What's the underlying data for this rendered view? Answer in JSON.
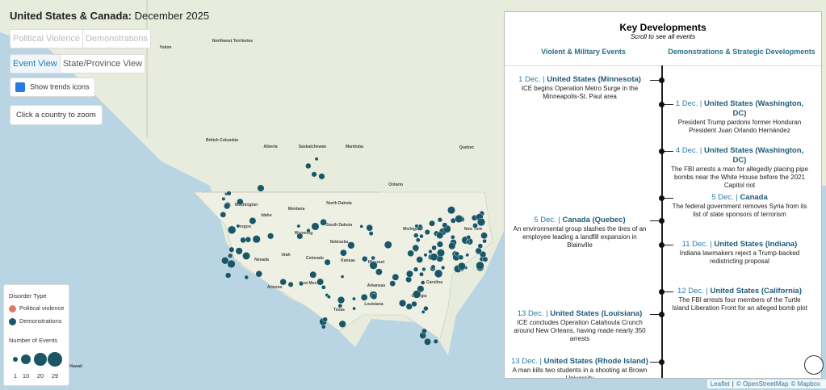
{
  "header": {
    "title_bold": "United States & Canada:",
    "title_rest": "December 2025"
  },
  "controls": {
    "type_tabs": [
      "Political Violence",
      "Demonstrations"
    ],
    "view_tabs": [
      "Event View",
      "State/Province View"
    ],
    "checkbox": "Show trends icons",
    "zoom_button": "Click a country to zoom"
  },
  "legend": {
    "title": "Disorder Type",
    "items": [
      {
        "label": "Political violence",
        "color": "#e07a67"
      },
      {
        "label": "Demonstrations",
        "color": "#1b5667"
      }
    ],
    "size_title": "Number of Events",
    "sizes": [
      1,
      10,
      20,
      29
    ]
  },
  "map_labels": [
    "Yukon",
    "Northwest Territories",
    "British Columbia",
    "Alberta",
    "Saskatchewan",
    "Manitoba",
    "Ontario",
    "Quebec",
    "Washington",
    "Oregon",
    "Idaho",
    "Montana",
    "North Dakota",
    "South Dakota",
    "Wyoming",
    "Nebraska",
    "Nevada",
    "Utah",
    "Colorado",
    "Kansas",
    "Missouri",
    "Arizona",
    "New Mexico",
    "Texas",
    "Arkansas",
    "Louisiana",
    "Georgia",
    "Carolina",
    "Michigan",
    "New York",
    "Hawaii"
  ],
  "panel": {
    "title": "Key Developments",
    "subtitle": "Scroll to see all events",
    "separator": "|",
    "columns": [
      {
        "heading": "Violent & Military Events",
        "events": [
          {
            "date": "1 Dec.",
            "place": "United States (Minnesota)",
            "text": "ICE begins Operation Metro Surge in the Minneapolis-St. Paul area"
          },
          {
            "date": "5 Dec.",
            "place": "Canada (Quebec)",
            "text": "An environmental group slashes the tires of an employee leading a landfill expansion in Blainville"
          },
          {
            "date": "13 Dec.",
            "place": "United States (Louisiana)",
            "text": "ICE concludes Operation Catahoula Crunch around New Orleans, having made nearly 350 arrests"
          },
          {
            "date": "13 Dec.",
            "place": "United States (Rhode Island)",
            "text": "A man kills two students in a shooting at Brown University"
          }
        ]
      },
      {
        "heading": "Demonstrations & Strategic Developments",
        "events": [
          {
            "date": "1 Dec.",
            "place": "United States (Washington, DC)",
            "text": "President Trump pardons former Honduran President Juan Orlando Hernández"
          },
          {
            "date": "4 Dec.",
            "place": "United States (Washington, DC)",
            "text": "The FBI arrests a man for allegedly placing pipe bombs near the White House before the 2021 Capitol riot"
          },
          {
            "date": "5 Dec.",
            "place": "Canada",
            "text": "The federal government removes Syria from its list of state sponsors of terrorism"
          },
          {
            "date": "11 Dec.",
            "place": "United States (Indiana)",
            "text": "Indiana lawmakers reject a Trump-backed redistricting proposal"
          },
          {
            "date": "12 Dec.",
            "place": "United States (California)",
            "text": "The FBI arrests four members of the Turtle Island Liberation Front for an alleged bomb plot"
          }
        ]
      }
    ]
  },
  "attribution": [
    "Leaflet",
    "|",
    "© OpenStreetMap",
    "© Mapbox"
  ]
}
